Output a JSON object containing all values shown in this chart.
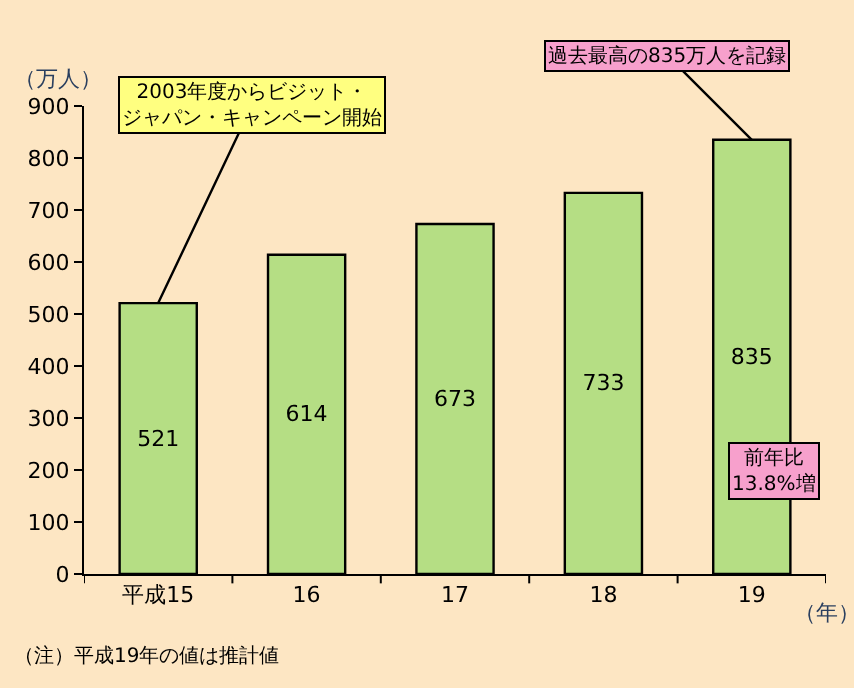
{
  "chart_data": {
    "type": "bar",
    "categories": [
      "平成15",
      "16",
      "17",
      "18",
      "19"
    ],
    "values": [
      521,
      614,
      673,
      733,
      835
    ],
    "color": "#b5de84",
    "ylim": [
      0,
      900
    ],
    "yticks": [
      0,
      100,
      200,
      300,
      400,
      500,
      600,
      700,
      800,
      900
    ],
    "ylabel": "（万人）",
    "xlabel": "（年）",
    "data_labels": true,
    "grid": false,
    "legend": false,
    "annotations": [
      {
        "text": "2003年度からビジット・ジャパン・キャンペーン開始",
        "x": "平成15",
        "y": 521
      },
      {
        "text": "過去最高の835万人を記録",
        "x": "19",
        "y": 835
      },
      "前年比\n13.8%増",
      "（注）平成19年の値は推計値"
    ]
  }
}
